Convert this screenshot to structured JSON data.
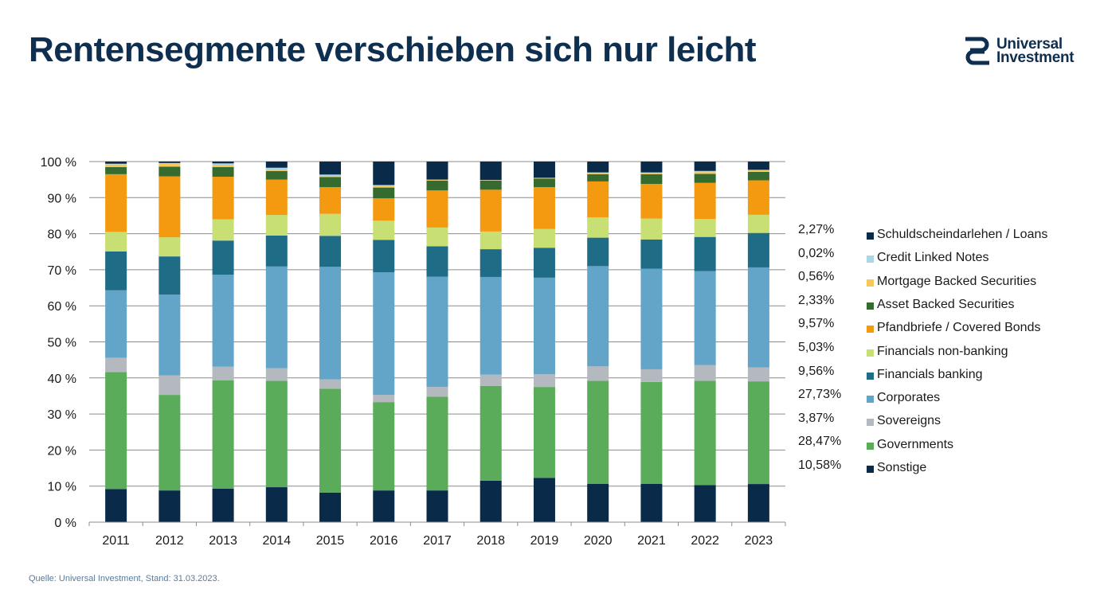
{
  "title": "Rentensegmente verschieben sich nur leicht",
  "logo": {
    "line1": "Universal",
    "line2": "Investment",
    "color": "#0e2f4f"
  },
  "source": "Quelle: Universal Investment, Stand: 31.03.2023.",
  "chart_data": {
    "type": "bar",
    "stacked": true,
    "title": "",
    "xlabel": "",
    "ylabel": "",
    "ylim": [
      0,
      100
    ],
    "yticks": [
      "0 %",
      "10 %",
      "20 %",
      "30 %",
      "40 %",
      "50 %",
      "60 %",
      "70 %",
      "80 %",
      "90 %",
      "100 %"
    ],
    "grid": true,
    "legend_position": "right",
    "categories": [
      "2011",
      "2012",
      "2013",
      "2014",
      "2015",
      "2016",
      "2017",
      "2018",
      "2019",
      "2020",
      "2021",
      "2022",
      "2023"
    ],
    "series": [
      {
        "name": "Sonstige",
        "color": "#0a2a4a",
        "value_label": "10,58%",
        "values": [
          9.2,
          8.8,
          9.3,
          9.7,
          8.2,
          8.8,
          8.8,
          11.5,
          12.3,
          10.6,
          10.6,
          10.3,
          10.58
        ]
      },
      {
        "name": "Governments",
        "color": "#5aab5a",
        "value_label": "28,47%",
        "values": [
          32.4,
          26.5,
          30.0,
          29.5,
          28.8,
          24.5,
          26.0,
          26.3,
          25.2,
          28.6,
          28.3,
          28.9,
          28.47
        ]
      },
      {
        "name": "Sovereigns",
        "color": "#b4b8bf",
        "value_label": "3,87%",
        "values": [
          4.0,
          5.4,
          3.8,
          3.5,
          2.6,
          2.0,
          2.7,
          3.1,
          3.5,
          4.0,
          3.5,
          4.4,
          3.87
        ]
      },
      {
        "name": "Corporates",
        "color": "#62a5c8",
        "value_label": "27,73%",
        "values": [
          18.7,
          22.4,
          25.5,
          28.2,
          31.2,
          34.0,
          30.6,
          27.1,
          26.8,
          27.8,
          27.9,
          26.0,
          27.73
        ]
      },
      {
        "name": "Financials banking",
        "color": "#1f6c87",
        "value_label": "9,56%",
        "values": [
          10.8,
          10.6,
          9.5,
          8.6,
          8.6,
          9.0,
          8.4,
          7.7,
          8.3,
          7.9,
          8.1,
          9.5,
          9.56
        ]
      },
      {
        "name": "Financials non-banking",
        "color": "#c8df73",
        "value_label": "5,03%",
        "values": [
          5.4,
          5.3,
          5.9,
          5.7,
          6.1,
          5.3,
          5.2,
          4.9,
          5.2,
          5.6,
          5.8,
          5.0,
          5.03
        ]
      },
      {
        "name": "Pfandbriefe / Covered Bonds",
        "color": "#f39a10",
        "value_label": "9,57%",
        "values": [
          16.0,
          16.9,
          11.8,
          9.8,
          7.4,
          6.2,
          10.3,
          11.6,
          11.6,
          10.0,
          9.6,
          10.0,
          9.57
        ]
      },
      {
        "name": "Asset Backed Securities",
        "color": "#366b2f",
        "value_label": "2,33%",
        "values": [
          2.0,
          2.7,
          2.7,
          2.4,
          2.8,
          3.0,
          2.7,
          2.5,
          2.4,
          2.0,
          2.7,
          2.5,
          2.33
        ]
      },
      {
        "name": "Mortgage Backed Securities",
        "color": "#f7c75a",
        "value_label": "0,56%",
        "values": [
          0.7,
          0.8,
          0.5,
          0.3,
          0.1,
          0.5,
          0.2,
          0.1,
          0.1,
          0.3,
          0.3,
          0.5,
          0.56
        ]
      },
      {
        "name": "Credit Linked Notes",
        "color": "#a9d7e5",
        "value_label": "0,02%",
        "values": [
          0.2,
          0.2,
          0.5,
          0.6,
          0.6,
          0.2,
          0.1,
          0.1,
          0.1,
          0.2,
          0.2,
          0.3,
          0.02
        ]
      },
      {
        "name": "Schuldscheindarlehen / Loans",
        "color": "#0a2a4a",
        "value_label": "2,27%",
        "values": [
          0.6,
          0.4,
          0.5,
          1.7,
          3.6,
          6.5,
          5.0,
          5.1,
          4.5,
          3.0,
          3.0,
          2.6,
          2.27
        ]
      }
    ]
  }
}
